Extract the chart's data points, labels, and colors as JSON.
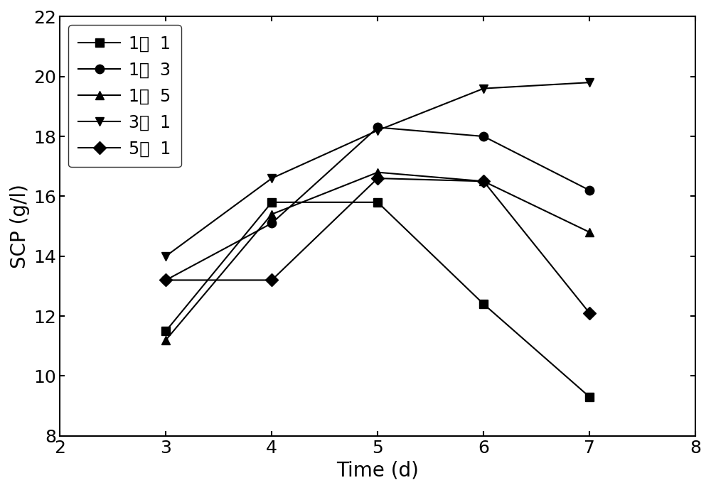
{
  "series": [
    {
      "label": "1：  1",
      "marker": "s",
      "x": [
        3,
        4,
        5,
        6,
        7
      ],
      "y": [
        11.5,
        15.8,
        15.8,
        12.4,
        9.3
      ]
    },
    {
      "label": "1：  3",
      "marker": "o",
      "x": [
        3,
        4,
        5,
        6,
        7
      ],
      "y": [
        13.2,
        15.1,
        18.3,
        18.0,
        16.2
      ]
    },
    {
      "label": "1：  5",
      "marker": "^",
      "x": [
        3,
        4,
        5,
        6,
        7
      ],
      "y": [
        11.2,
        15.4,
        16.8,
        16.5,
        14.8
      ]
    },
    {
      "label": "3：  1",
      "marker": "v",
      "x": [
        3,
        4,
        5,
        6,
        7
      ],
      "y": [
        14.0,
        16.6,
        18.2,
        19.6,
        19.8
      ]
    },
    {
      "label": "5：  1",
      "marker": "D",
      "x": [
        3,
        4,
        5,
        6,
        7
      ],
      "y": [
        13.2,
        13.2,
        16.6,
        16.5,
        12.1
      ]
    }
  ],
  "xlabel": "Time (d)",
  "ylabel": "SCP (g/l)",
  "xlim": [
    2,
    8
  ],
  "ylim": [
    8,
    22
  ],
  "xticks": [
    2,
    3,
    4,
    5,
    6,
    7,
    8
  ],
  "yticks": [
    8,
    10,
    12,
    14,
    16,
    18,
    20,
    22
  ],
  "line_color": "black",
  "marker_color": "black",
  "marker_size": 9,
  "line_width": 1.5,
  "font_size": 18,
  "label_font_size": 20
}
